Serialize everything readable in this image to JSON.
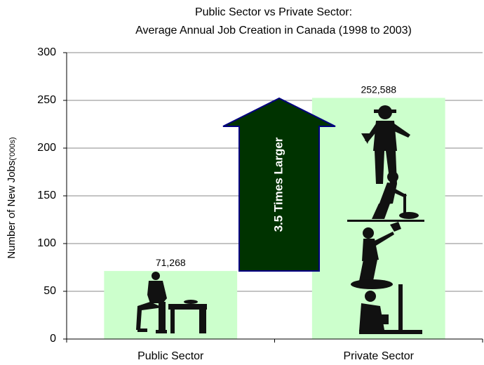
{
  "chart_data": {
    "type": "bar",
    "title": "Public Sector vs Private Sector:",
    "subtitle": "Average Annual Job Creation in Canada (1998 to 2003)",
    "y_label": "Number of New Jobs",
    "y_label_unit": "('000s)",
    "categories": [
      "Public Sector",
      "Private Sector"
    ],
    "values": [
      71.268,
      252.588
    ],
    "value_labels": [
      "71,268",
      "252,588"
    ],
    "color": "#ccffcc",
    "ylim": [
      0,
      300
    ],
    "yticks": [
      0,
      50,
      100,
      150,
      200,
      250,
      300
    ],
    "grid": true,
    "annotation": "3.5 Times Larger"
  }
}
